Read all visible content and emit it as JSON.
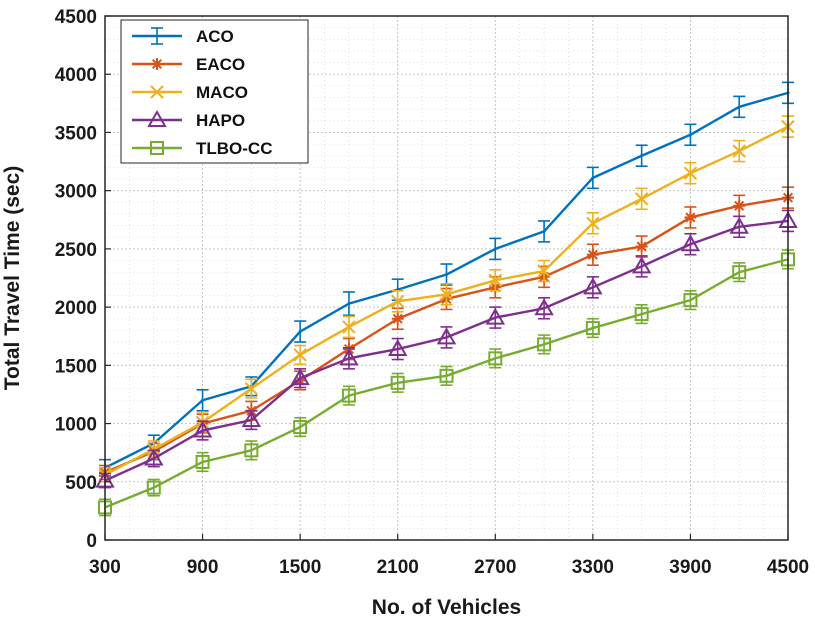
{
  "chart_data": {
    "type": "line",
    "title": "",
    "xlabel": "No. of Vehicles",
    "ylabel": "Total Travel Time (sec)",
    "xlim": [
      300,
      4500
    ],
    "ylim": [
      0,
      4500
    ],
    "x_ticks": [
      300,
      900,
      1500,
      2100,
      2700,
      3300,
      3900,
      4500
    ],
    "y_ticks": [
      0,
      500,
      1000,
      1500,
      2000,
      2500,
      3000,
      3500,
      4000,
      4500
    ],
    "grid": true,
    "legend_position": "top-left",
    "x": [
      300,
      600,
      900,
      1200,
      1500,
      1800,
      2100,
      2400,
      2700,
      3000,
      3300,
      3600,
      3900,
      4200,
      4500
    ],
    "series": [
      {
        "name": "ACO",
        "color": "#0072BD",
        "marker": "none",
        "values": [
          620,
          830,
          1200,
          1320,
          1790,
          2030,
          2150,
          2280,
          2500,
          2650,
          3110,
          3300,
          3480,
          3720,
          3840
        ],
        "error": [
          70,
          70,
          90,
          80,
          90,
          100,
          90,
          90,
          90,
          90,
          90,
          90,
          90,
          90,
          90
        ]
      },
      {
        "name": "EACO",
        "color": "#D95319",
        "marker": "asterisk",
        "values": [
          580,
          760,
          1000,
          1110,
          1370,
          1640,
          1900,
          2070,
          2170,
          2260,
          2450,
          2520,
          2770,
          2870,
          2940
        ],
        "error": [
          60,
          70,
          80,
          80,
          80,
          90,
          90,
          90,
          90,
          90,
          90,
          90,
          90,
          90,
          90
        ]
      },
      {
        "name": "MACO",
        "color": "#EDB120",
        "marker": "x",
        "values": [
          560,
          780,
          1010,
          1300,
          1590,
          1830,
          2050,
          2110,
          2230,
          2310,
          2720,
          2930,
          3150,
          3340,
          3550
        ],
        "error": [
          60,
          70,
          80,
          80,
          80,
          90,
          90,
          90,
          90,
          90,
          90,
          90,
          90,
          90,
          90
        ]
      },
      {
        "name": "HAPO",
        "color": "#7E2F8E",
        "marker": "triangle",
        "values": [
          510,
          700,
          940,
          1030,
          1390,
          1560,
          1640,
          1740,
          1910,
          1990,
          2170,
          2350,
          2540,
          2690,
          2740
        ],
        "error": [
          60,
          70,
          80,
          80,
          80,
          90,
          90,
          90,
          90,
          90,
          90,
          90,
          90,
          90,
          90
        ]
      },
      {
        "name": "TLBO-CC",
        "color": "#77AC30",
        "marker": "square",
        "values": [
          280,
          450,
          670,
          770,
          970,
          1240,
          1350,
          1410,
          1560,
          1680,
          1820,
          1940,
          2060,
          2300,
          2410
        ],
        "error": [
          70,
          70,
          80,
          80,
          80,
          80,
          80,
          80,
          80,
          80,
          80,
          80,
          80,
          80,
          80
        ]
      }
    ]
  }
}
